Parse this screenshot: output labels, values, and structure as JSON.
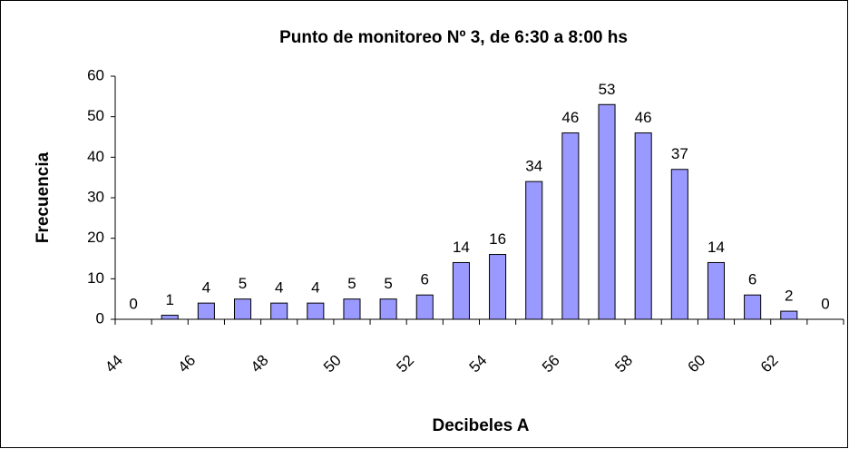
{
  "chart_data": {
    "type": "histogram",
    "title": "Punto de monitoreo Nº 3, de 6:30 a 8:00 hs",
    "xlabel": "Decibeles A",
    "ylabel": "Frecuencia",
    "bins": [
      44,
      45,
      46,
      47,
      48,
      49,
      50,
      51,
      52,
      53,
      54,
      55,
      56,
      57,
      58,
      59,
      60,
      61,
      62,
      63,
      64
    ],
    "values": [
      0,
      1,
      4,
      5,
      4,
      4,
      5,
      5,
      6,
      14,
      16,
      34,
      46,
      53,
      46,
      37,
      14,
      6,
      2,
      0
    ],
    "color": "#9999ff",
    "xlim": [
      44,
      64
    ],
    "xticks": [
      44,
      46,
      48,
      50,
      52,
      54,
      56,
      58,
      60,
      62
    ],
    "ylim": [
      0,
      60
    ],
    "yticks": [
      0,
      10,
      20,
      30,
      40,
      50,
      60
    ]
  }
}
